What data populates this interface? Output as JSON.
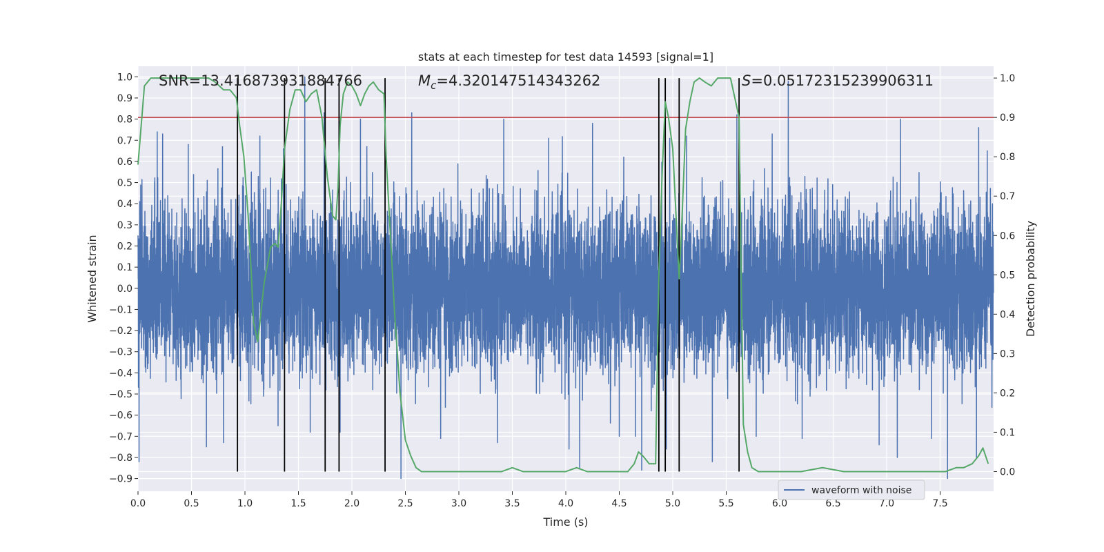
{
  "chart_data": {
    "type": "line",
    "title": "stats at each timestep for test data 14593 [signal=1]",
    "xlabel": "Time (s)",
    "ylabel": "Whitened strain",
    "y2label": "Detection probability",
    "xlim": [
      0.0,
      8.0
    ],
    "ylim": [
      -0.96,
      1.05
    ],
    "y2lim": [
      -0.05,
      1.03
    ],
    "xticks": [
      0.0,
      0.5,
      1.0,
      1.5,
      2.0,
      2.5,
      3.0,
      3.5,
      4.0,
      4.5,
      5.0,
      5.5,
      6.0,
      6.5,
      7.0,
      7.5
    ],
    "xtick_labels": [
      "0.0",
      "0.5",
      "1.0",
      "1.5",
      "2.0",
      "2.5",
      "3.0",
      "3.5",
      "4.0",
      "4.5",
      "5.0",
      "5.5",
      "6.0",
      "6.5",
      "7.0",
      "7.5"
    ],
    "yticks": [
      1.0,
      0.9,
      0.8,
      0.7,
      0.6,
      0.5,
      0.4,
      0.3,
      0.2,
      0.1,
      0.0,
      -0.1,
      -0.2,
      -0.3,
      -0.4,
      -0.5,
      -0.6,
      -0.7,
      -0.8,
      -0.9
    ],
    "ytick_labels": [
      "1.0",
      "0.9",
      "0.8",
      "0.7",
      "0.6",
      "0.5",
      "0.4",
      "0.3",
      "0.2",
      "0.1",
      "0.0",
      "−0.1",
      "−0.2",
      "−0.3",
      "−0.4",
      "−0.5",
      "−0.6",
      "−0.7",
      "−0.8",
      "−0.9"
    ],
    "y2ticks": [
      0.0,
      0.1,
      0.2,
      0.3,
      0.4,
      0.5,
      0.6,
      0.7,
      0.8,
      0.9,
      1.0
    ],
    "y2tick_labels": [
      "0.0",
      "0.1",
      "0.2",
      "0.3",
      "0.4",
      "0.5",
      "0.6",
      "0.7",
      "0.8",
      "0.9",
      "1.0"
    ],
    "grid": true,
    "legend_position": "bottom-right",
    "annotations": {
      "snr": "SNR=13.416873931884766",
      "mc_symbol": "M",
      "mc_subscript": "c",
      "mc_value": "=4.320147514343262",
      "s_symbol": "S",
      "s_value": "=0.05172315239906311"
    },
    "threshold": {
      "axis": "y2",
      "value": 0.9,
      "color": "#c44e52"
    },
    "vertical_lines": {
      "x": [
        0.93,
        1.37,
        1.75,
        1.88,
        2.31,
        4.87,
        4.93,
        5.06,
        5.62
      ],
      "y2_range": [
        0.0,
        1.0
      ],
      "color": "#000000"
    },
    "series": [
      {
        "name": "waveform with noise",
        "axis": "y",
        "color": "#4c72b0",
        "kind": "noise",
        "sample_rate": 1024,
        "typical_envelope": 0.45,
        "peaks": [
          [
            0.0,
            0.25
          ],
          [
            0.01,
            -0.82
          ],
          [
            0.18,
            0.74
          ],
          [
            0.23,
            0.73
          ],
          [
            0.47,
            0.68
          ],
          [
            0.64,
            -0.75
          ],
          [
            0.79,
            0.67
          ],
          [
            0.8,
            -0.73
          ],
          [
            1.06,
            0.55
          ],
          [
            1.14,
            0.72
          ],
          [
            1.31,
            -0.65
          ],
          [
            1.36,
            0.66
          ],
          [
            1.56,
            1.0
          ],
          [
            1.61,
            -0.68
          ],
          [
            1.74,
            0.83
          ],
          [
            1.75,
            -0.78
          ],
          [
            1.89,
            -0.68
          ],
          [
            2.08,
            0.8
          ],
          [
            2.14,
            0.67
          ],
          [
            2.56,
            0.83
          ],
          [
            2.83,
            -0.71
          ],
          [
            3.36,
            -0.73
          ],
          [
            3.42,
            0.8
          ],
          [
            3.84,
            0.71
          ],
          [
            4.03,
            -0.76
          ],
          [
            4.13,
            -0.85
          ],
          [
            4.25,
            0.78
          ],
          [
            4.5,
            -0.7
          ],
          [
            4.65,
            -0.7
          ],
          [
            4.71,
            -0.86
          ],
          [
            4.94,
            -0.76
          ],
          [
            5.13,
            0.72
          ],
          [
            5.37,
            -0.82
          ],
          [
            5.6,
            0.82
          ],
          [
            5.78,
            -0.7
          ],
          [
            5.93,
            0.73
          ],
          [
            6.08,
            0.98
          ],
          [
            6.21,
            -0.71
          ],
          [
            6.93,
            -0.74
          ],
          [
            7.1,
            -0.8
          ],
          [
            7.13,
            0.8
          ],
          [
            7.42,
            -0.71
          ],
          [
            7.84,
            -0.8
          ],
          [
            7.86,
            0.76
          ],
          [
            7.94,
            0.65
          ]
        ]
      },
      {
        "name": "",
        "axis": "y2",
        "color": "#55a868",
        "x": [
          0.0,
          0.03,
          0.06,
          0.12,
          0.2,
          0.35,
          0.5,
          0.6,
          0.66,
          0.72,
          0.8,
          0.86,
          0.92,
          0.95,
          0.99,
          1.03,
          1.06,
          1.08,
          1.12,
          1.18,
          1.24,
          1.28,
          1.31,
          1.34,
          1.37,
          1.42,
          1.47,
          1.52,
          1.57,
          1.62,
          1.67,
          1.72,
          1.77,
          1.82,
          1.85,
          1.87,
          1.89,
          1.92,
          1.96,
          2.0,
          2.04,
          2.08,
          2.12,
          2.16,
          2.2,
          2.25,
          2.3,
          2.32,
          2.36,
          2.4,
          2.45,
          2.5,
          2.55,
          2.6,
          2.65,
          2.8,
          3.0,
          3.2,
          3.4,
          3.5,
          3.6,
          3.8,
          3.9,
          4.0,
          4.1,
          4.2,
          4.4,
          4.5,
          4.58,
          4.64,
          4.68,
          4.72,
          4.78,
          4.8,
          4.82,
          4.84,
          4.87,
          4.9,
          4.93,
          4.96,
          5.0,
          5.04,
          5.06,
          5.08,
          5.12,
          5.16,
          5.2,
          5.25,
          5.3,
          5.36,
          5.42,
          5.48,
          5.54,
          5.58,
          5.62,
          5.64,
          5.66,
          5.7,
          5.74,
          5.8,
          6.0,
          6.2,
          6.4,
          6.6,
          6.8,
          7.0,
          7.2,
          7.4,
          7.55,
          7.65,
          7.72,
          7.8,
          7.86,
          7.9,
          7.95
        ],
        "y": [
          0.78,
          0.88,
          0.98,
          1.0,
          1.0,
          1.0,
          1.0,
          1.0,
          1.0,
          0.99,
          0.97,
          0.97,
          0.95,
          0.88,
          0.8,
          0.65,
          0.5,
          0.38,
          0.33,
          0.48,
          0.57,
          0.58,
          0.57,
          0.68,
          0.82,
          0.92,
          0.97,
          0.97,
          0.94,
          0.96,
          0.97,
          0.9,
          0.75,
          0.65,
          0.64,
          0.72,
          0.88,
          0.96,
          0.99,
          0.98,
          0.96,
          0.93,
          0.96,
          0.98,
          0.99,
          0.97,
          0.96,
          0.8,
          0.6,
          0.4,
          0.2,
          0.08,
          0.04,
          0.01,
          0.0,
          0.0,
          0.0,
          0.0,
          0.0,
          0.01,
          0.0,
          0.0,
          0.0,
          0.0,
          0.01,
          0.0,
          0.0,
          0.0,
          0.0,
          0.02,
          0.05,
          0.04,
          0.02,
          0.02,
          0.02,
          0.02,
          0.5,
          0.75,
          0.94,
          0.9,
          0.82,
          0.6,
          0.49,
          0.6,
          0.87,
          0.94,
          0.99,
          1.0,
          0.99,
          0.98,
          1.0,
          1.0,
          1.0,
          0.95,
          0.9,
          0.5,
          0.12,
          0.05,
          0.01,
          0.0,
          0.0,
          0.0,
          0.01,
          0.0,
          0.0,
          0.0,
          0.0,
          0.0,
          0.0,
          0.01,
          0.01,
          0.02,
          0.04,
          0.06,
          0.02
        ]
      }
    ]
  }
}
